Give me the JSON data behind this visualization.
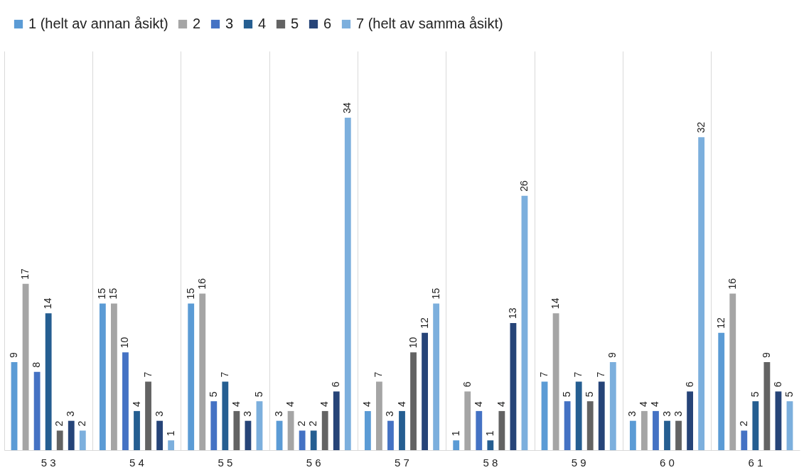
{
  "chart_data": {
    "type": "bar",
    "categories": [
      "5 3",
      "5 4",
      "5 5",
      "5 6",
      "5 7",
      "5 8",
      "5 9",
      "6 0",
      "6 1"
    ],
    "series": [
      {
        "name": "1 (helt av annan åsikt)",
        "color": "#5b9bd5",
        "values": [
          9,
          15,
          15,
          3,
          4,
          1,
          7,
          3,
          12
        ]
      },
      {
        "name": "2",
        "color": "#a5a5a5",
        "values": [
          17,
          15,
          16,
          4,
          7,
          6,
          14,
          4,
          16
        ]
      },
      {
        "name": "3",
        "color": "#4472c4",
        "values": [
          8,
          10,
          5,
          2,
          3,
          4,
          5,
          4,
          2
        ]
      },
      {
        "name": "4",
        "color": "#255e91",
        "values": [
          14,
          4,
          7,
          2,
          4,
          1,
          7,
          3,
          5
        ]
      },
      {
        "name": "5",
        "color": "#636363",
        "values": [
          2,
          7,
          4,
          4,
          10,
          4,
          5,
          3,
          9
        ]
      },
      {
        "name": "6",
        "color": "#264478",
        "values": [
          3,
          3,
          3,
          6,
          12,
          13,
          7,
          6,
          6
        ]
      },
      {
        "name": "7 (helt av samma åsikt)",
        "color": "#7cafdd",
        "values": [
          2,
          1,
          5,
          34,
          15,
          26,
          9,
          32,
          5
        ]
      }
    ],
    "data_labels": true,
    "legend": "top",
    "grid": "x"
  }
}
